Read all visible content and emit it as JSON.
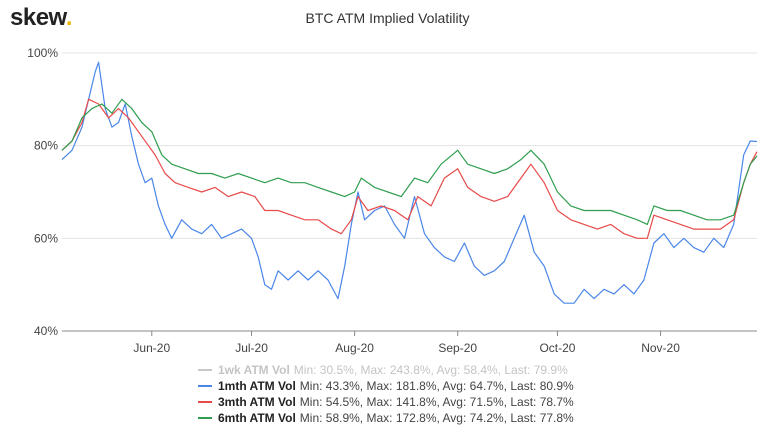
{
  "logo": {
    "text": "skew",
    "dot": "."
  },
  "chart_data": {
    "type": "line",
    "title": "BTC ATM Implied Volatility",
    "xlabel": "",
    "ylabel": "",
    "x_range": [
      "2020-05-05",
      "2020-11-30"
    ],
    "ylim": [
      40,
      100
    ],
    "yticks": [
      40,
      60,
      80,
      100
    ],
    "ytick_labels": [
      "40%",
      "60%",
      "80%",
      "100%"
    ],
    "xtick_labels": [
      "Jun-20",
      "Jul-20",
      "Aug-20",
      "Sep-20",
      "Oct-20",
      "Nov-20"
    ],
    "xtick_dates": [
      "2020-06-01",
      "2020-07-01",
      "2020-08-01",
      "2020-09-01",
      "2020-10-01",
      "2020-11-01"
    ],
    "grid": true,
    "legend_position": "bottom",
    "series": [
      {
        "name": "1wk ATM Vol",
        "stats": "Min: 30.5%, Max: 243.8%, Avg: 58.4%, Last: 79.9%",
        "color": "#c8c8c8",
        "hidden": true,
        "points": []
      },
      {
        "name": "1mth ATM Vol",
        "stats": "Min: 43.3%, Max: 181.8%, Avg: 64.7%, Last: 80.9%",
        "color": "#4a86e8",
        "hidden": false,
        "points": [
          [
            "2020-05-05",
            77
          ],
          [
            "2020-05-08",
            79
          ],
          [
            "2020-05-11",
            84
          ],
          [
            "2020-05-13",
            90
          ],
          [
            "2020-05-15",
            96
          ],
          [
            "2020-05-16",
            98
          ],
          [
            "2020-05-18",
            88
          ],
          [
            "2020-05-20",
            84
          ],
          [
            "2020-05-22",
            85
          ],
          [
            "2020-05-24",
            89
          ],
          [
            "2020-05-26",
            82
          ],
          [
            "2020-05-28",
            76
          ],
          [
            "2020-05-30",
            72
          ],
          [
            "2020-06-01",
            73
          ],
          [
            "2020-06-03",
            67
          ],
          [
            "2020-06-05",
            63
          ],
          [
            "2020-06-07",
            60
          ],
          [
            "2020-06-10",
            64
          ],
          [
            "2020-06-13",
            62
          ],
          [
            "2020-06-16",
            61
          ],
          [
            "2020-06-19",
            63
          ],
          [
            "2020-06-22",
            60
          ],
          [
            "2020-06-25",
            61
          ],
          [
            "2020-06-28",
            62
          ],
          [
            "2020-07-01",
            60
          ],
          [
            "2020-07-03",
            56
          ],
          [
            "2020-07-05",
            50
          ],
          [
            "2020-07-07",
            49
          ],
          [
            "2020-07-09",
            53
          ],
          [
            "2020-07-12",
            51
          ],
          [
            "2020-07-15",
            53
          ],
          [
            "2020-07-18",
            51
          ],
          [
            "2020-07-21",
            53
          ],
          [
            "2020-07-24",
            51
          ],
          [
            "2020-07-27",
            47
          ],
          [
            "2020-07-29",
            54
          ],
          [
            "2020-07-31",
            63
          ],
          [
            "2020-08-02",
            70
          ],
          [
            "2020-08-04",
            64
          ],
          [
            "2020-08-07",
            66
          ],
          [
            "2020-08-10",
            67
          ],
          [
            "2020-08-13",
            63
          ],
          [
            "2020-08-16",
            60
          ],
          [
            "2020-08-19",
            69
          ],
          [
            "2020-08-22",
            61
          ],
          [
            "2020-08-25",
            58
          ],
          [
            "2020-08-28",
            56
          ],
          [
            "2020-08-31",
            55
          ],
          [
            "2020-09-03",
            59
          ],
          [
            "2020-09-06",
            54
          ],
          [
            "2020-09-09",
            52
          ],
          [
            "2020-09-12",
            53
          ],
          [
            "2020-09-15",
            55
          ],
          [
            "2020-09-18",
            60
          ],
          [
            "2020-09-21",
            65
          ],
          [
            "2020-09-24",
            57
          ],
          [
            "2020-09-27",
            54
          ],
          [
            "2020-09-30",
            48
          ],
          [
            "2020-10-03",
            46
          ],
          [
            "2020-10-06",
            46
          ],
          [
            "2020-10-09",
            49
          ],
          [
            "2020-10-12",
            47
          ],
          [
            "2020-10-15",
            49
          ],
          [
            "2020-10-18",
            48
          ],
          [
            "2020-10-21",
            50
          ],
          [
            "2020-10-24",
            48
          ],
          [
            "2020-10-27",
            51
          ],
          [
            "2020-10-30",
            59
          ],
          [
            "2020-11-02",
            61
          ],
          [
            "2020-11-05",
            58
          ],
          [
            "2020-11-08",
            60
          ],
          [
            "2020-11-11",
            58
          ],
          [
            "2020-11-14",
            57
          ],
          [
            "2020-11-17",
            60
          ],
          [
            "2020-11-20",
            58
          ],
          [
            "2020-11-23",
            63
          ],
          [
            "2020-11-26",
            78
          ],
          [
            "2020-11-28",
            81
          ],
          [
            "2020-11-30",
            80.9
          ]
        ]
      },
      {
        "name": "3mth ATM Vol",
        "stats": "Min: 54.5%, Max: 141.8%, Avg: 71.5%, Last: 78.7%",
        "color": "#e84a4a",
        "hidden": false,
        "points": [
          [
            "2020-05-05",
            79
          ],
          [
            "2020-05-08",
            81
          ],
          [
            "2020-05-11",
            85
          ],
          [
            "2020-05-13",
            90
          ],
          [
            "2020-05-16",
            89
          ],
          [
            "2020-05-19",
            86
          ],
          [
            "2020-05-22",
            88
          ],
          [
            "2020-05-25",
            86
          ],
          [
            "2020-05-28",
            83
          ],
          [
            "2020-05-31",
            80
          ],
          [
            "2020-06-02",
            78
          ],
          [
            "2020-06-05",
            74
          ],
          [
            "2020-06-08",
            72
          ],
          [
            "2020-06-12",
            71
          ],
          [
            "2020-06-16",
            70
          ],
          [
            "2020-06-20",
            71
          ],
          [
            "2020-06-24",
            69
          ],
          [
            "2020-06-28",
            70
          ],
          [
            "2020-07-02",
            69
          ],
          [
            "2020-07-05",
            66
          ],
          [
            "2020-07-09",
            66
          ],
          [
            "2020-07-13",
            65
          ],
          [
            "2020-07-17",
            64
          ],
          [
            "2020-07-21",
            64
          ],
          [
            "2020-07-25",
            62
          ],
          [
            "2020-07-28",
            61
          ],
          [
            "2020-07-31",
            64
          ],
          [
            "2020-08-02",
            69
          ],
          [
            "2020-08-05",
            66
          ],
          [
            "2020-08-09",
            67
          ],
          [
            "2020-08-13",
            66
          ],
          [
            "2020-08-17",
            64
          ],
          [
            "2020-08-20",
            69
          ],
          [
            "2020-08-24",
            67
          ],
          [
            "2020-08-28",
            73
          ],
          [
            "2020-09-01",
            75
          ],
          [
            "2020-09-04",
            71
          ],
          [
            "2020-09-08",
            69
          ],
          [
            "2020-09-12",
            68
          ],
          [
            "2020-09-16",
            69
          ],
          [
            "2020-09-20",
            73
          ],
          [
            "2020-09-23",
            76
          ],
          [
            "2020-09-27",
            72
          ],
          [
            "2020-10-01",
            66
          ],
          [
            "2020-10-05",
            64
          ],
          [
            "2020-10-09",
            63
          ],
          [
            "2020-10-13",
            62
          ],
          [
            "2020-10-17",
            63
          ],
          [
            "2020-10-21",
            61
          ],
          [
            "2020-10-25",
            60
          ],
          [
            "2020-10-28",
            60
          ],
          [
            "2020-10-30",
            65
          ],
          [
            "2020-11-03",
            64
          ],
          [
            "2020-11-07",
            63
          ],
          [
            "2020-11-11",
            62
          ],
          [
            "2020-11-15",
            62
          ],
          [
            "2020-11-19",
            62
          ],
          [
            "2020-11-23",
            64
          ],
          [
            "2020-11-26",
            72
          ],
          [
            "2020-11-28",
            76
          ],
          [
            "2020-11-30",
            78.7
          ]
        ]
      },
      {
        "name": "6mth ATM Vol",
        "stats": "Min: 58.9%, Max: 172.8%, Avg: 74.2%, Last: 77.8%",
        "color": "#2f9e4f",
        "hidden": false,
        "points": [
          [
            "2020-05-05",
            79
          ],
          [
            "2020-05-08",
            81
          ],
          [
            "2020-05-11",
            86
          ],
          [
            "2020-05-14",
            88
          ],
          [
            "2020-05-17",
            89
          ],
          [
            "2020-05-20",
            87
          ],
          [
            "2020-05-23",
            90
          ],
          [
            "2020-05-26",
            88
          ],
          [
            "2020-05-29",
            85
          ],
          [
            "2020-06-01",
            83
          ],
          [
            "2020-06-04",
            78
          ],
          [
            "2020-06-07",
            76
          ],
          [
            "2020-06-11",
            75
          ],
          [
            "2020-06-15",
            74
          ],
          [
            "2020-06-19",
            74
          ],
          [
            "2020-06-23",
            73
          ],
          [
            "2020-06-27",
            74
          ],
          [
            "2020-07-01",
            73
          ],
          [
            "2020-07-05",
            72
          ],
          [
            "2020-07-09",
            73
          ],
          [
            "2020-07-13",
            72
          ],
          [
            "2020-07-17",
            72
          ],
          [
            "2020-07-21",
            71
          ],
          [
            "2020-07-25",
            70
          ],
          [
            "2020-07-29",
            69
          ],
          [
            "2020-08-01",
            70
          ],
          [
            "2020-08-03",
            73
          ],
          [
            "2020-08-07",
            71
          ],
          [
            "2020-08-11",
            70
          ],
          [
            "2020-08-15",
            69
          ],
          [
            "2020-08-19",
            73
          ],
          [
            "2020-08-23",
            72
          ],
          [
            "2020-08-27",
            76
          ],
          [
            "2020-09-01",
            79
          ],
          [
            "2020-09-04",
            76
          ],
          [
            "2020-09-08",
            75
          ],
          [
            "2020-09-12",
            74
          ],
          [
            "2020-09-16",
            75
          ],
          [
            "2020-09-20",
            77
          ],
          [
            "2020-09-23",
            79
          ],
          [
            "2020-09-27",
            76
          ],
          [
            "2020-10-01",
            70
          ],
          [
            "2020-10-05",
            67
          ],
          [
            "2020-10-09",
            66
          ],
          [
            "2020-10-13",
            66
          ],
          [
            "2020-10-17",
            66
          ],
          [
            "2020-10-21",
            65
          ],
          [
            "2020-10-25",
            64
          ],
          [
            "2020-10-28",
            63
          ],
          [
            "2020-10-30",
            67
          ],
          [
            "2020-11-03",
            66
          ],
          [
            "2020-11-07",
            66
          ],
          [
            "2020-11-11",
            65
          ],
          [
            "2020-11-15",
            64
          ],
          [
            "2020-11-19",
            64
          ],
          [
            "2020-11-23",
            65
          ],
          [
            "2020-11-26",
            72
          ],
          [
            "2020-11-28",
            76
          ],
          [
            "2020-11-30",
            77.8
          ]
        ]
      }
    ]
  }
}
